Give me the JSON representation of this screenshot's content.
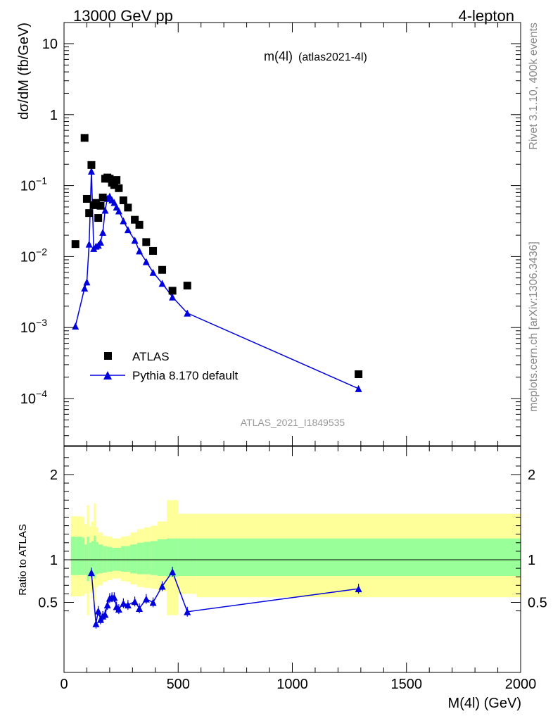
{
  "header": {
    "left": "13000 GeV pp",
    "right": "4-lepton"
  },
  "side_labels": {
    "rivet": "Rivet 3.1.10,  400k events",
    "mcplots": "mcplots.cern.ch [arXiv:1306.3436]"
  },
  "chart_data": [
    {
      "type": "scatter",
      "title_main": "m(4l)",
      "title_sub": "(atlas2021-4l)",
      "analysis_id": "ATLAS_2021_I1849535",
      "ylabel": "dσ/dM (fb/GeV)",
      "yscale": "log",
      "ylim": [
        2e-05,
        15
      ],
      "xlim": [
        0,
        2000
      ],
      "yticks": [
        {
          "value": 10,
          "base": "10",
          "exp": ""
        },
        {
          "value": 1,
          "base": "1",
          "exp": ""
        },
        {
          "value": 0.1,
          "base": "10",
          "exp": "−1"
        },
        {
          "value": 0.01,
          "base": "10",
          "exp": "−2"
        },
        {
          "value": 0.001,
          "base": "10",
          "exp": "−3"
        },
        {
          "value": 0.0001,
          "base": "10",
          "exp": "−4"
        }
      ],
      "legend": {
        "position": "lower-left",
        "entries": [
          "ATLAS",
          "Pythia 8.170 default"
        ]
      },
      "series": [
        {
          "name": "ATLAS",
          "marker": "square",
          "color": "#000000",
          "x": [
            50,
            90,
            100,
            110,
            120,
            130,
            140,
            150,
            160,
            170,
            180,
            190,
            200,
            210,
            220,
            230,
            240,
            260,
            280,
            310,
            330,
            360,
            390,
            430,
            475,
            540,
            1290
          ],
          "y": [
            0.015,
            0.47,
            0.065,
            0.041,
            0.195,
            0.053,
            0.057,
            0.035,
            0.052,
            0.068,
            0.125,
            0.13,
            0.125,
            0.11,
            0.102,
            0.12,
            0.092,
            0.062,
            0.049,
            0.033,
            0.028,
            0.016,
            0.012,
            0.0065,
            0.0033,
            0.0039,
            0.00022
          ]
        },
        {
          "name": "Pythia 8.170 default",
          "marker": "triangle",
          "color": "#0000dd",
          "x": [
            50,
            90,
            100,
            110,
            120,
            130,
            140,
            150,
            160,
            170,
            180,
            190,
            200,
            210,
            220,
            230,
            240,
            260,
            280,
            310,
            330,
            360,
            390,
            430,
            475,
            540,
            1290
          ],
          "y": [
            0.00105,
            0.0036,
            0.0044,
            0.015,
            0.16,
            0.013,
            0.014,
            0.0145,
            0.016,
            0.022,
            0.045,
            0.066,
            0.071,
            0.063,
            0.058,
            0.05,
            0.044,
            0.032,
            0.024,
            0.017,
            0.012,
            0.0085,
            0.006,
            0.0042,
            0.0027,
            0.0016,
            0.000138
          ]
        }
      ]
    },
    {
      "type": "line",
      "ylabel": "Ratio to ATLAS",
      "xlabel": "M(4l) (GeV)",
      "xlim": [
        0,
        2000
      ],
      "ylim": [
        0.35,
        2.3
      ],
      "xticks": [
        "0",
        "500",
        "1000",
        "1500",
        "2000"
      ],
      "yticks": [
        "0.5",
        "1",
        "2"
      ],
      "reference_line": 1,
      "bands": [
        {
          "x0": 30,
          "x1": 80,
          "green": [
            0.82,
            1.27
          ],
          "yellow": [
            0.57,
            1.51
          ]
        },
        {
          "x0": 80,
          "x1": 90,
          "green": [
            0.82,
            1.26
          ],
          "yellow": [
            0.58,
            1.5
          ]
        },
        {
          "x0": 90,
          "x1": 100,
          "green": [
            0.82,
            1.18
          ],
          "yellow": [
            0.6,
            1.42
          ]
        },
        {
          "x0": 100,
          "x1": 110,
          "green": [
            0.75,
            1.27
          ],
          "yellow": [
            0.35,
            1.64
          ]
        },
        {
          "x0": 110,
          "x1": 120,
          "green": [
            0.8,
            1.2
          ],
          "yellow": [
            0.62,
            1.39
          ]
        },
        {
          "x0": 120,
          "x1": 130,
          "green": [
            0.8,
            1.22
          ],
          "yellow": [
            0.55,
            1.45
          ]
        },
        {
          "x0": 130,
          "x1": 140,
          "green": [
            0.78,
            1.28
          ],
          "yellow": [
            0.35,
            1.66
          ]
        },
        {
          "x0": 140,
          "x1": 150,
          "green": [
            0.83,
            1.21
          ],
          "yellow": [
            0.68,
            1.38
          ]
        },
        {
          "x0": 150,
          "x1": 170,
          "green": [
            0.84,
            1.18
          ],
          "yellow": [
            0.7,
            1.32
          ]
        },
        {
          "x0": 170,
          "x1": 190,
          "green": [
            0.85,
            1.16
          ],
          "yellow": [
            0.74,
            1.28
          ]
        },
        {
          "x0": 190,
          "x1": 210,
          "green": [
            0.86,
            1.15
          ],
          "yellow": [
            0.76,
            1.27
          ]
        },
        {
          "x0": 210,
          "x1": 230,
          "green": [
            0.87,
            1.14
          ],
          "yellow": [
            0.78,
            1.25
          ]
        },
        {
          "x0": 230,
          "x1": 250,
          "green": [
            0.87,
            1.14
          ],
          "yellow": [
            0.78,
            1.25
          ]
        },
        {
          "x0": 250,
          "x1": 270,
          "green": [
            0.86,
            1.16
          ],
          "yellow": [
            0.75,
            1.27
          ]
        },
        {
          "x0": 270,
          "x1": 290,
          "green": [
            0.86,
            1.16
          ],
          "yellow": [
            0.74,
            1.28
          ]
        },
        {
          "x0": 290,
          "x1": 320,
          "green": [
            0.84,
            1.18
          ],
          "yellow": [
            0.71,
            1.32
          ]
        },
        {
          "x0": 320,
          "x1": 350,
          "green": [
            0.83,
            1.2
          ],
          "yellow": [
            0.68,
            1.36
          ]
        },
        {
          "x0": 350,
          "x1": 380,
          "green": [
            0.83,
            1.21
          ],
          "yellow": [
            0.67,
            1.38
          ]
        },
        {
          "x0": 380,
          "x1": 410,
          "green": [
            0.82,
            1.22
          ],
          "yellow": [
            0.66,
            1.4
          ]
        },
        {
          "x0": 410,
          "x1": 450,
          "green": [
            0.81,
            1.24
          ],
          "yellow": [
            0.63,
            1.45
          ]
        },
        {
          "x0": 450,
          "x1": 500,
          "green": [
            0.8,
            1.25
          ],
          "yellow": [
            0.35,
            1.7
          ]
        },
        {
          "x0": 500,
          "x1": 580,
          "green": [
            0.81,
            1.25
          ],
          "yellow": [
            0.6,
            1.54
          ]
        },
        {
          "x0": 580,
          "x1": 2000,
          "green": [
            0.81,
            1.25
          ],
          "yellow": [
            0.56,
            1.54
          ]
        }
      ],
      "series": [
        {
          "name": "Pythia 8.170 default",
          "marker": "triangle",
          "color": "#0000dd",
          "x": [
            120,
            140,
            150,
            160,
            170,
            180,
            190,
            200,
            210,
            220,
            230,
            240,
            260,
            280,
            310,
            330,
            360,
            390,
            430,
            475,
            540,
            1290
          ],
          "y": [
            0.85,
            0.25,
            0.4,
            0.3,
            0.34,
            0.36,
            0.47,
            0.55,
            0.56,
            0.56,
            0.45,
            0.42,
            0.49,
            0.47,
            0.51,
            0.43,
            0.54,
            0.5,
            0.69,
            0.86,
            0.39,
            0.66
          ]
        }
      ]
    }
  ]
}
